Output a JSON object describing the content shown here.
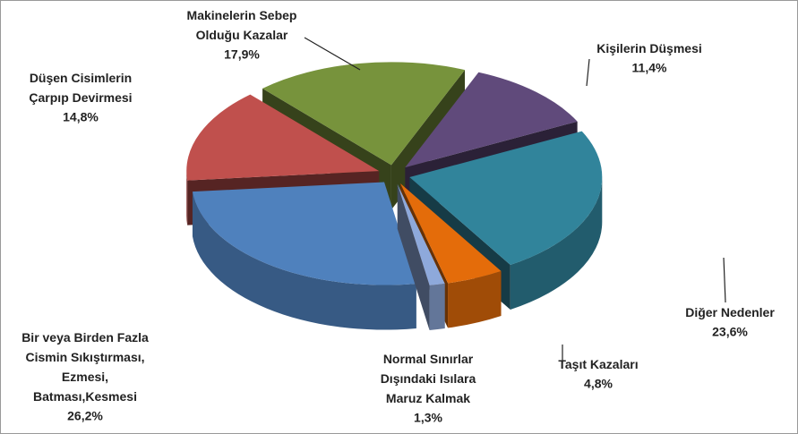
{
  "chart_data": {
    "type": "pie3d",
    "categories": [
      "Makinelerin Sebep\nOlduğu Kazalar",
      "Kişilerin Düşmesi",
      "Diğer Nedenler",
      "Taşıt Kazaları",
      "Normal Sınırlar\nDışındaki Isılara\nMaruz Kalmak",
      "Bir veya Birden Fazla\nCismin Sıkıştırması,\nEzmesi,\nBatması,Kesmesi",
      "Düşen Cisimlerin\nÇarpıp Devirmesi"
    ],
    "values": [
      17.9,
      11.4,
      23.6,
      4.8,
      1.3,
      26.2,
      14.8
    ],
    "value_labels": [
      "17,9%",
      "11,4%",
      "23,6%",
      "4,8%",
      "1,3%",
      "26,2%",
      "14,8%"
    ],
    "colors": [
      "#77933c",
      "#604a7b",
      "#31849b",
      "#e46c0a",
      "#8ea9db",
      "#4f81bd",
      "#c0504d"
    ]
  }
}
